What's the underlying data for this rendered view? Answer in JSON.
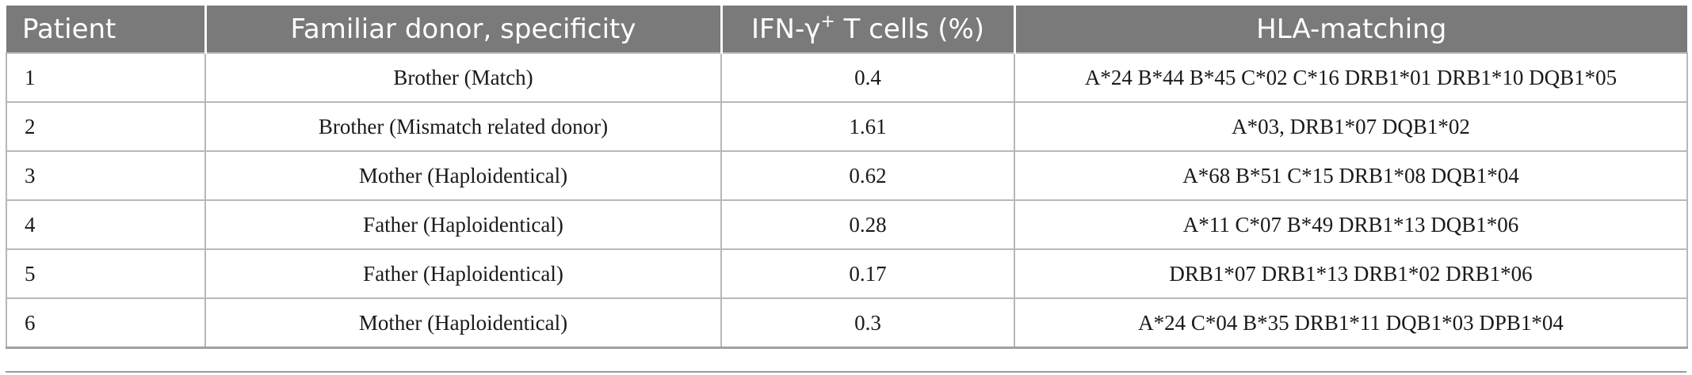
{
  "table": {
    "headers": {
      "patient": "Patient",
      "donor": "Familiar donor, specificity",
      "ifn_main": "IFN-γ",
      "ifn_sup": "+",
      "ifn_rest": " T cells (%)",
      "hla": "HLA-matching"
    },
    "rows": [
      {
        "patient": "1",
        "donor": "Brother (Match)",
        "ifn": "0.4",
        "hla": "A*24 B*44 B*45 C*02 C*16 DRB1*01 DRB1*10 DQB1*05"
      },
      {
        "patient": "2",
        "donor": "Brother (Mismatch related donor)",
        "ifn": "1.61",
        "hla": "A*03, DRB1*07 DQB1*02"
      },
      {
        "patient": "3",
        "donor": "Mother (Haploidentical)",
        "ifn": "0.62",
        "hla": "A*68 B*51 C*15 DRB1*08 DQB1*04"
      },
      {
        "patient": "4",
        "donor": "Father (Haploidentical)",
        "ifn": "0.28",
        "hla": "A*11 C*07 B*49 DRB1*13 DQB1*06"
      },
      {
        "patient": "5",
        "donor": "Father (Haploidentical)",
        "ifn": "0.17",
        "hla": "DRB1*07 DRB1*13 DRB1*02 DRB1*06"
      },
      {
        "patient": "6",
        "donor": "Mother (Haploidentical)",
        "ifn": "0.3",
        "hla": "A*24 C*04 B*35 DRB1*11 DQB1*03 DPB1*04"
      }
    ]
  },
  "colors": {
    "header_bg": "#7a7a7a",
    "header_text": "#ffffff",
    "border": "#b8b8b8"
  }
}
